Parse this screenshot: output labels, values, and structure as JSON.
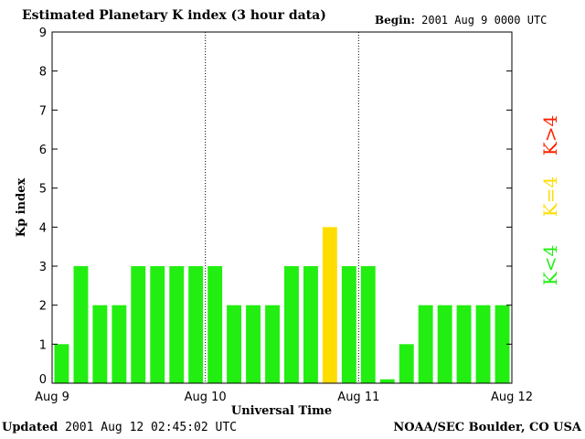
{
  "header": {
    "title": "Estimated Planetary K index (3 hour data)",
    "begin_label": "Begin:",
    "begin_value": "2001 Aug 9 0000 UTC"
  },
  "footer": {
    "updated_label": "Updated",
    "updated_value": "2001 Aug 12 02:45:02 UTC",
    "source": "NOAA/SEC Boulder, CO USA"
  },
  "legend": {
    "items": [
      {
        "label": "K<4",
        "color": "#22ee11"
      },
      {
        "label": "K=4",
        "color": "#ffdd00"
      },
      {
        "label": "K>4",
        "color": "#ff2200"
      }
    ]
  },
  "chart_data": {
    "type": "bar",
    "title": "Estimated Planetary K index (3 hour data)",
    "xlabel": "Universal Time",
    "ylabel": "Kp index",
    "ylim": [
      0,
      9
    ],
    "yticks": [
      "0",
      "1",
      "2",
      "3",
      "4",
      "5",
      "6",
      "7",
      "8",
      "9"
    ],
    "xticks": [
      "Aug 9",
      "Aug 10",
      "Aug 11",
      "Aug 12"
    ],
    "values": [
      1,
      3,
      2,
      2,
      3,
      3,
      3,
      3,
      3,
      2,
      2,
      2,
      3,
      3,
      4,
      3,
      3,
      0.1,
      1,
      2,
      2,
      2,
      2,
      2
    ],
    "colors": {
      "below4": "#22ee11",
      "equal4": "#ffdd00",
      "above4": "#ff2200"
    },
    "day_separators": [
      "Aug 10",
      "Aug 11"
    ]
  }
}
